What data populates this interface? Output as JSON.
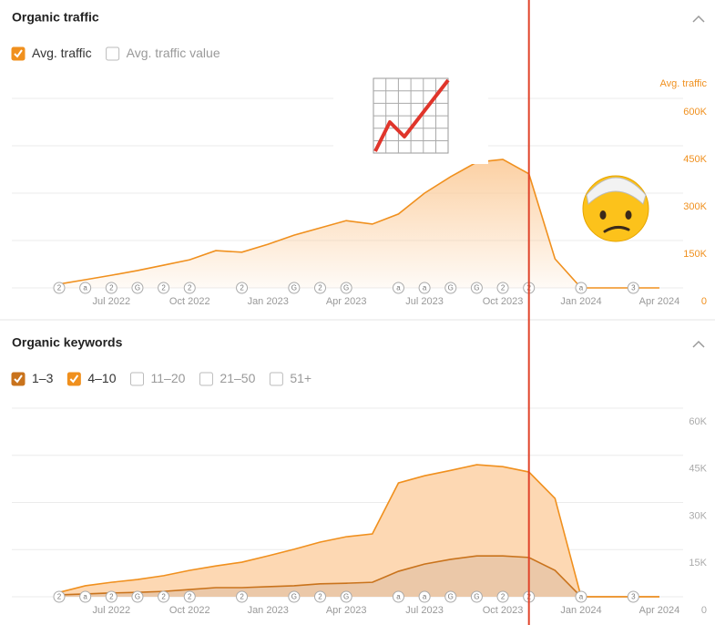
{
  "highlight_x": "2023-11",
  "chart_data": [
    {
      "type": "area",
      "title": "Organic traffic",
      "stacked": false,
      "grid": true,
      "y_axis_label": "Avg. traffic",
      "axis_color": "#f0901e",
      "inactive_toggles": [
        "Avg. traffic value"
      ],
      "x": [
        "2022-05",
        "2022-06",
        "2022-07",
        "2022-08",
        "2022-09",
        "2022-10",
        "2022-11",
        "2022-12",
        "2023-01",
        "2023-02",
        "2023-03",
        "2023-04",
        "2023-05",
        "2023-06",
        "2023-07",
        "2023-08",
        "2023-09",
        "2023-10",
        "2023-11",
        "2023-12",
        "2024-01",
        "2024-02",
        "2024-03",
        "2024-04"
      ],
      "xticks": [
        {
          "value": "2022-07",
          "label": "Jul 2022"
        },
        {
          "value": "2022-10",
          "label": "Oct 2022"
        },
        {
          "value": "2023-01",
          "label": "Jan 2023"
        },
        {
          "value": "2023-04",
          "label": "Apr 2023"
        },
        {
          "value": "2023-07",
          "label": "Jul 2023"
        },
        {
          "value": "2023-10",
          "label": "Oct 2023"
        },
        {
          "value": "2024-01",
          "label": "Jan 2024"
        },
        {
          "value": "2024-04",
          "label": "Apr 2024"
        }
      ],
      "ylim": [
        0,
        600000
      ],
      "yticks": [
        0,
        {
          "value": 150000,
          "label": "150K"
        },
        {
          "value": 300000,
          "label": "300K"
        },
        {
          "value": 450000,
          "label": "450K"
        },
        {
          "value": 600000,
          "label": "600K"
        }
      ],
      "series": [
        {
          "name": "Avg. traffic",
          "color": "#f0901e",
          "fill": "#fbc893",
          "values": [
            12000,
            26000,
            40000,
            55000,
            72000,
            89000,
            118000,
            113000,
            138000,
            167000,
            190000,
            213000,
            202000,
            234000,
            300000,
            352000,
            398000,
            407000,
            361000,
            92000,
            0,
            0,
            0,
            0
          ]
        }
      ],
      "annotations": [
        {
          "x": "2022-05",
          "label": "2"
        },
        {
          "x": "2022-06",
          "label": "a"
        },
        {
          "x": "2022-07",
          "label": "2"
        },
        {
          "x": "2022-08",
          "label": "G"
        },
        {
          "x": "2022-09",
          "label": "2"
        },
        {
          "x": "2022-10",
          "label": "2"
        },
        {
          "x": "2022-12",
          "label": "2"
        },
        {
          "x": "2023-02",
          "label": "G"
        },
        {
          "x": "2023-03",
          "label": "2"
        },
        {
          "x": "2023-04",
          "label": "G"
        },
        {
          "x": "2023-06",
          "label": "a"
        },
        {
          "x": "2023-07",
          "label": "a"
        },
        {
          "x": "2023-08",
          "label": "G"
        },
        {
          "x": "2023-09",
          "label": "G"
        },
        {
          "x": "2023-10",
          "label": "2"
        },
        {
          "x": "2023-11",
          "label": "2"
        },
        {
          "x": "2024-01",
          "label": "a"
        },
        {
          "x": "2024-03",
          "label": "3"
        }
      ]
    },
    {
      "type": "area",
      "title": "Organic keywords",
      "stacked": true,
      "grid": true,
      "axis_color": "#aaaaaa",
      "inactive_toggles": [
        "11–20",
        "21–50",
        "51+"
      ],
      "x": [
        "2022-05",
        "2022-06",
        "2022-07",
        "2022-08",
        "2022-09",
        "2022-10",
        "2022-11",
        "2022-12",
        "2023-01",
        "2023-02",
        "2023-03",
        "2023-04",
        "2023-05",
        "2023-06",
        "2023-07",
        "2023-08",
        "2023-09",
        "2023-10",
        "2023-11",
        "2023-12",
        "2024-01",
        "2024-02",
        "2024-03",
        "2024-04"
      ],
      "xticks": [
        {
          "value": "2022-07",
          "label": "Jul 2022"
        },
        {
          "value": "2022-10",
          "label": "Oct 2022"
        },
        {
          "value": "2023-01",
          "label": "Jan 2023"
        },
        {
          "value": "2023-04",
          "label": "Apr 2023"
        },
        {
          "value": "2023-07",
          "label": "Jul 2023"
        },
        {
          "value": "2023-10",
          "label": "Oct 2023"
        },
        {
          "value": "2024-01",
          "label": "Jan 2024"
        },
        {
          "value": "2024-04",
          "label": "Apr 2024"
        }
      ],
      "ylim": [
        0,
        60000
      ],
      "yticks": [
        0,
        {
          "value": 15000,
          "label": "15K"
        },
        {
          "value": 30000,
          "label": "30K"
        },
        {
          "value": 45000,
          "label": "45K"
        },
        {
          "value": 60000,
          "label": "60K"
        }
      ],
      "series": [
        {
          "name": "1–3",
          "color": "#c9731c",
          "fill": "#ebc8a8",
          "values": [
            600,
            900,
            1200,
            1400,
            1700,
            2300,
            2900,
            2900,
            3200,
            3500,
            4100,
            4300,
            4600,
            8100,
            10400,
            11900,
            13000,
            13000,
            12500,
            8400,
            0,
            0,
            0,
            0
          ]
        },
        {
          "name": "4–10",
          "color": "#f0901e",
          "fill": "#fdd8b3",
          "values": [
            800,
            2600,
            3400,
            4100,
            5000,
            6100,
            6900,
            8100,
            9800,
            11600,
            13300,
            14800,
            15400,
            28100,
            28100,
            28300,
            29000,
            28400,
            27200,
            22900,
            0,
            0,
            0,
            0
          ]
        }
      ],
      "annotations": [
        {
          "x": "2022-05",
          "label": "2"
        },
        {
          "x": "2022-06",
          "label": "a"
        },
        {
          "x": "2022-07",
          "label": "2"
        },
        {
          "x": "2022-08",
          "label": "G"
        },
        {
          "x": "2022-09",
          "label": "2"
        },
        {
          "x": "2022-10",
          "label": "2"
        },
        {
          "x": "2022-12",
          "label": "2"
        },
        {
          "x": "2023-02",
          "label": "G"
        },
        {
          "x": "2023-03",
          "label": "2"
        },
        {
          "x": "2023-04",
          "label": "G"
        },
        {
          "x": "2023-06",
          "label": "a"
        },
        {
          "x": "2023-07",
          "label": "a"
        },
        {
          "x": "2023-08",
          "label": "G"
        },
        {
          "x": "2023-09",
          "label": "G"
        },
        {
          "x": "2023-10",
          "label": "2"
        },
        {
          "x": "2023-11",
          "label": "2"
        },
        {
          "x": "2024-01",
          "label": "a"
        },
        {
          "x": "2024-03",
          "label": "3"
        }
      ]
    }
  ]
}
